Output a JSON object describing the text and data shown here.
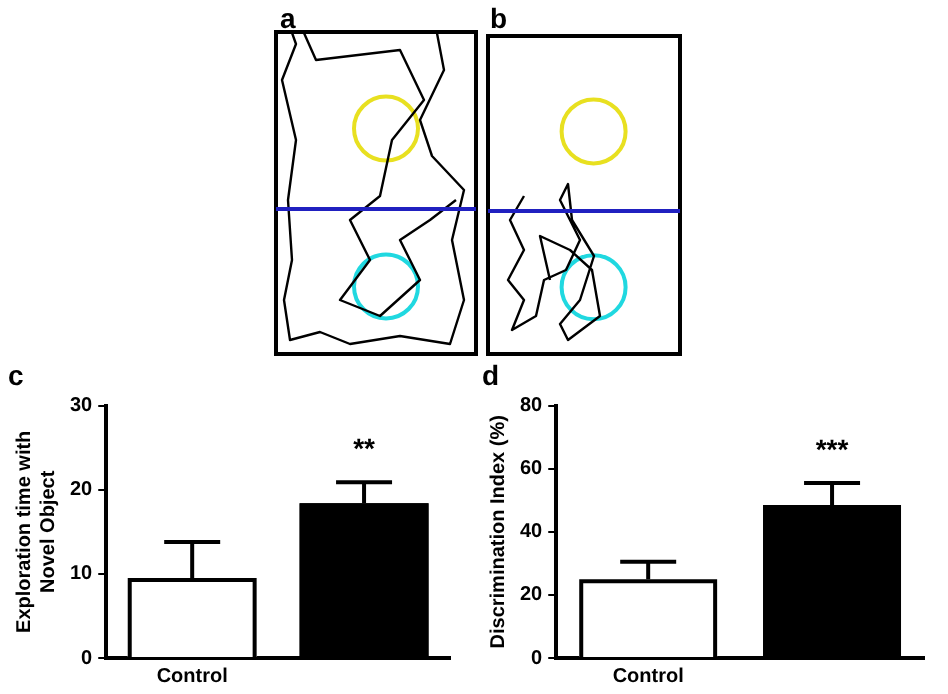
{
  "chart_data": [
    {
      "type": "other",
      "annotations": [
        "a",
        "b"
      ]
    },
    {
      "type": "bar",
      "title": "c",
      "ylabel": "Exploration time with\nNovel Object",
      "categories": [
        "Control",
        null
      ],
      "values": [
        9.5,
        18.4
      ],
      "colors": [
        "#ffffff",
        "#000000"
      ],
      "errors": [
        [
          9.5,
          13.8
        ],
        [
          18.4,
          20.9
        ]
      ],
      "ylim": [
        0,
        30
      ],
      "yticks": [
        0,
        10,
        20,
        30
      ],
      "grid": false,
      "legend": false,
      "annotations": [
        "**"
      ]
    },
    {
      "type": "bar",
      "title": "d",
      "ylabel": "Discrimination Index (%)",
      "categories": [
        "Control",
        null
      ],
      "values": [
        25,
        48.5
      ],
      "colors": [
        "#ffffff",
        "#000000"
      ],
      "errors": [
        [
          25,
          30.5
        ],
        [
          48.5,
          55.5
        ]
      ],
      "ylim": [
        0,
        80
      ],
      "yticks": [
        0,
        20,
        40,
        60,
        80
      ],
      "grid": false,
      "legend": false,
      "annotations": [
        "***"
      ]
    }
  ]
}
